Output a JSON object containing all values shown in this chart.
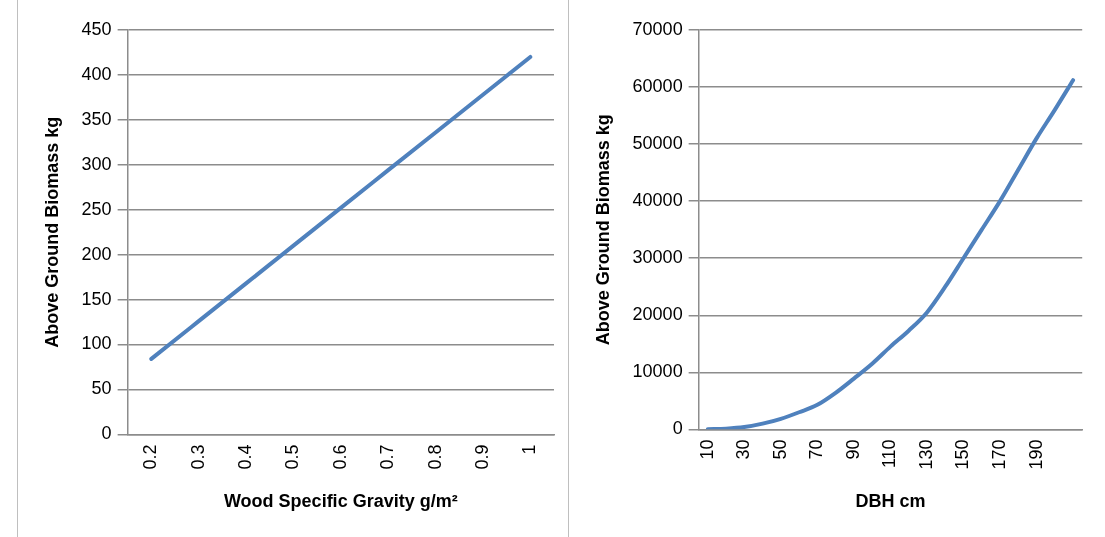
{
  "chart_data": [
    {
      "type": "line",
      "xlabel": "Wood Specific Gravity g/m²",
      "ylabel": "Above Ground Biomass kg",
      "categories": [
        "0.2",
        "0.3",
        "0.4",
        "0.5",
        "0.6",
        "0.7",
        "0.8",
        "0.9",
        "1"
      ],
      "series": [
        {
          "color": "#4f81bd",
          "values": [
            84,
            126,
            168,
            210,
            252,
            294,
            336,
            378,
            420
          ]
        }
      ],
      "ylim": [
        0,
        450
      ],
      "yticks": [
        0,
        50,
        100,
        150,
        200,
        250,
        300,
        350,
        400,
        450
      ],
      "grid": "y",
      "legend": false,
      "marker": "none"
    },
    {
      "type": "line",
      "xlabel": "DBH cm",
      "ylabel": "Above Ground Biomass kg",
      "categories": [
        "10",
        null,
        "30",
        null,
        "50",
        null,
        "70",
        null,
        "90",
        null,
        "110",
        null,
        "130",
        null,
        "150",
        null,
        "170",
        null,
        "190",
        null,
        null
      ],
      "series": [
        {
          "color": "#4f81bd",
          "values": [
            20,
            120,
            400,
            1000,
            1850,
            3000,
            4300,
            6400,
            8900,
            11500,
            14500,
            17300,
            20500,
            25000,
            30000,
            35000,
            40000,
            45500,
            51000,
            56000,
            61200
          ]
        }
      ],
      "ylim": [
        0,
        70000
      ],
      "yticks": [
        0,
        10000,
        20000,
        30000,
        40000,
        50000,
        60000,
        70000
      ],
      "grid": "y",
      "legend": false,
      "marker": "none"
    }
  ]
}
